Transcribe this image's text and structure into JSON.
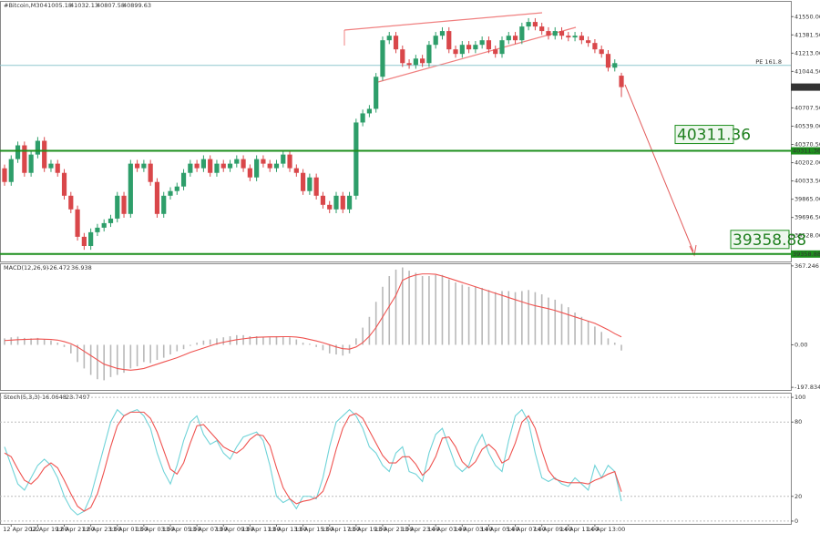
{
  "chart_data": [
    {
      "type": "candlestick",
      "title": "#Bitcoin,M30",
      "open": [
        40150,
        40024,
        40235,
        40362,
        40108,
        40277,
        40404,
        40151,
        40193,
        40108,
        39897,
        39771,
        39518,
        39433,
        39560,
        39602,
        39644,
        39686,
        39897,
        39729,
        40193,
        40151,
        40193,
        40024,
        39729,
        39897,
        39940,
        39982,
        40108,
        40193,
        40151,
        40235,
        40108,
        40193,
        40151,
        40193,
        40235,
        40151,
        40066,
        40235,
        40193,
        40151,
        40193,
        40277,
        40151,
        40108,
        39940,
        40066,
        39897,
        39813,
        39771,
        39897,
        39771,
        39897,
        40573,
        40657,
        40699,
        40995,
        41332,
        41374,
        41248,
        41121,
        41104,
        41163,
        41121,
        41290,
        41374,
        41417,
        41248,
        41206,
        41290,
        41248,
        41290,
        41332,
        41248,
        41206,
        41332,
        41374,
        41332,
        41459,
        41501,
        41459,
        41417,
        41374,
        41417,
        41374,
        41358,
        41374,
        41332,
        41307,
        41248,
        41206,
        41079,
        41005.18
      ],
      "high": [
        40185,
        40270,
        40397,
        40397,
        40312,
        40439,
        40439,
        40228,
        40228,
        40143,
        39932,
        39806,
        39553,
        39595,
        39637,
        39679,
        39721,
        39932,
        39932,
        40228,
        40228,
        40228,
        40228,
        40059,
        39932,
        39975,
        40017,
        40143,
        40228,
        40228,
        40270,
        40270,
        40228,
        40228,
        40228,
        40270,
        40270,
        40186,
        40270,
        40270,
        40228,
        40228,
        40312,
        40312,
        40186,
        40143,
        40101,
        40101,
        39932,
        39848,
        39932,
        39932,
        39932,
        40608,
        40692,
        40734,
        41030,
        41367,
        41409,
        41409,
        41283,
        41156,
        41198,
        41198,
        41325,
        41409,
        41452,
        41452,
        41283,
        41325,
        41325,
        41325,
        41367,
        41367,
        41283,
        41367,
        41409,
        41409,
        41494,
        41536,
        41536,
        41494,
        41452,
        41452,
        41452,
        41409,
        41409,
        41409,
        41367,
        41342,
        41283,
        41241,
        41156,
        41032.13
      ],
      "low": [
        39989,
        39989,
        40200,
        40073,
        40073,
        40242,
        40116,
        40116,
        40073,
        39862,
        39736,
        39483,
        39398,
        39398,
        39525,
        39567,
        39609,
        39651,
        39694,
        39694,
        40116,
        40116,
        39989,
        39694,
        39694,
        39862,
        39905,
        39947,
        40073,
        40116,
        40116,
        40073,
        40073,
        40116,
        40116,
        40158,
        40116,
        40031,
        40031,
        40158,
        40116,
        40116,
        40158,
        40116,
        40073,
        39905,
        39905,
        39862,
        39778,
        39736,
        39736,
        39736,
        39736,
        39862,
        40538,
        40622,
        40664,
        40960,
        41297,
        41213,
        41086,
        41069,
        41069,
        41086,
        41086,
        41255,
        41339,
        41213,
        41171,
        41171,
        41213,
        41213,
        41255,
        41213,
        41171,
        41171,
        41297,
        41297,
        41297,
        41424,
        41424,
        41382,
        41339,
        41339,
        41339,
        41323,
        41323,
        41297,
        41272,
        41213,
        41171,
        41044,
        41044,
        40807.58
      ],
      "close": [
        40024,
        40235,
        40362,
        40108,
        40277,
        40404,
        40151,
        40193,
        40108,
        39897,
        39771,
        39518,
        39433,
        39560,
        39602,
        39644,
        39686,
        39897,
        39729,
        40193,
        40151,
        40193,
        40024,
        39729,
        39897,
        39940,
        39982,
        40108,
        40193,
        40151,
        40235,
        40108,
        40193,
        40151,
        40193,
        40235,
        40151,
        40066,
        40235,
        40193,
        40151,
        40193,
        40277,
        40151,
        40108,
        39940,
        40066,
        39897,
        39813,
        39771,
        39897,
        39771,
        39897,
        40573,
        40657,
        40699,
        40995,
        41332,
        41374,
        41248,
        41121,
        41104,
        41163,
        41121,
        41290,
        41374,
        41417,
        41248,
        41206,
        41290,
        41248,
        41290,
        41332,
        41248,
        41206,
        41332,
        41374,
        41332,
        41459,
        41501,
        41459,
        41417,
        41374,
        41417,
        41374,
        41358,
        41374,
        41332,
        41307,
        41248,
        41206,
        41079,
        41121,
        40899.63
      ],
      "bull_color": "#2e9e6a",
      "bear_color": "#d9474a",
      "ylim": [
        39290,
        41670
      ],
      "yticks": [
        {
          "value": 41550,
          "label": "41550.00"
        },
        {
          "value": 41381.5,
          "label": "41381.50"
        },
        {
          "value": 41213,
          "label": "41213.00"
        },
        {
          "value": 41044.5,
          "label": "41044.50"
        },
        {
          "value": 40707.5,
          "label": "40707.50"
        },
        {
          "value": 40539,
          "label": "40539.00"
        },
        {
          "value": 40370.5,
          "label": "40370.50"
        },
        {
          "value": 40202,
          "label": "40202.00"
        },
        {
          "value": 40033.5,
          "label": "40033.50"
        },
        {
          "value": 39865,
          "label": "39865.00"
        },
        {
          "value": 39696.5,
          "label": "39696.50"
        },
        {
          "value": 39528,
          "label": "39528.00"
        }
      ],
      "levels": [
        40311.36,
        39358.88
      ],
      "level_color": "#1e8f1e",
      "fib_level": {
        "value": 41100,
        "label": "PE 161.8"
      },
      "fib_color": "#8fc7cf"
    },
    {
      "type": "macd",
      "title": "MACD(12,26,9)",
      "histogram": [
        30,
        35,
        38,
        32,
        30,
        32,
        25,
        20,
        10,
        -10,
        -40,
        -80,
        -110,
        -140,
        -160,
        -165,
        -150,
        -140,
        -130,
        -110,
        -100,
        -80,
        -85,
        -70,
        -60,
        -45,
        -30,
        -20,
        -5,
        10,
        20,
        25,
        30,
        35,
        40,
        45,
        45,
        40,
        40,
        35,
        35,
        40,
        40,
        35,
        25,
        10,
        5,
        -10,
        -25,
        -40,
        -45,
        -50,
        -40,
        30,
        80,
        130,
        200,
        270,
        320,
        350,
        360,
        345,
        335,
        320,
        320,
        325,
        325,
        305,
        290,
        280,
        270,
        270,
        265,
        255,
        245,
        250,
        250,
        245,
        250,
        255,
        245,
        235,
        220,
        210,
        190,
        175,
        150,
        130,
        110,
        85,
        60,
        30,
        10,
        -26.472
      ],
      "signal": [
        20,
        22,
        24,
        25,
        26,
        27,
        26,
        25,
        22,
        15,
        5,
        -10,
        -30,
        -50,
        -70,
        -90,
        -100,
        -110,
        -115,
        -118,
        -115,
        -110,
        -100,
        -90,
        -80,
        -70,
        -60,
        -48,
        -35,
        -25,
        -15,
        -5,
        5,
        12,
        18,
        24,
        28,
        32,
        35,
        36,
        37,
        37,
        38,
        38,
        36,
        32,
        25,
        18,
        10,
        0,
        -10,
        -18,
        -20,
        -10,
        10,
        40,
        80,
        130,
        180,
        230,
        300,
        315,
        325,
        330,
        330,
        328,
        320,
        310,
        300,
        290,
        280,
        270,
        260,
        250,
        240,
        230,
        220,
        210,
        200,
        190,
        182,
        175,
        168,
        160,
        150,
        140,
        130,
        120,
        110,
        100,
        85,
        70,
        52,
        36.938
      ],
      "histogram_color": "#b8b8b8",
      "signal_color": "#ef5350",
      "ylim": [
        -210,
        375
      ],
      "yticks": [
        367.246,
        {
          "value": 0,
          "label": "0.00"
        },
        -197.834
      ]
    },
    {
      "type": "stochastic",
      "title": "Stoch(5,3,3)",
      "categories": [
        null,
        "12 Apr 2022",
        null,
        null,
        null,
        "12 Apr 19:00",
        null,
        null,
        null,
        "12 Apr 21:00",
        null,
        null,
        null,
        "12 Apr 23:00",
        null,
        null,
        null,
        "13 Apr 01:00",
        null,
        null,
        null,
        "13 Apr 03:00",
        null,
        null,
        null,
        "13 Apr 05:00",
        null,
        null,
        null,
        "13 Apr 07:00",
        null,
        null,
        null,
        "13 Apr 09:00",
        null,
        null,
        null,
        "13 Apr 11:00",
        null,
        null,
        null,
        "13 Apr 13:00",
        null,
        null,
        null,
        "13 Apr 15:00",
        null,
        null,
        null,
        "13 Apr 17:00",
        null,
        null,
        null,
        "13 Apr 19:00",
        null,
        null,
        null,
        "13 Apr 21:00",
        null,
        null,
        null,
        "13 Apr 23:00",
        null,
        null,
        null,
        "14 Apr 01:00",
        null,
        null,
        null,
        "14 Apr 03:00",
        null,
        null,
        null,
        "14 Apr 05:00",
        null,
        null,
        null,
        "14 Apr 07:00",
        null,
        null,
        null,
        "14 Apr 09:00",
        null,
        null,
        null,
        "14 Apr 11:00",
        null,
        null,
        null,
        "14 Apr 13:00",
        null,
        null,
        null,
        null
      ],
      "main": [
        60,
        45,
        30,
        25,
        35,
        45,
        50,
        45,
        35,
        20,
        10,
        5,
        8,
        20,
        40,
        60,
        80,
        90,
        85,
        88,
        90,
        85,
        75,
        55,
        40,
        30,
        45,
        65,
        80,
        85,
        70,
        62,
        65,
        55,
        50,
        60,
        68,
        70,
        72,
        65,
        45,
        20,
        15,
        18,
        10,
        20,
        20,
        18,
        35,
        60,
        80,
        85,
        90,
        85,
        75,
        60,
        55,
        45,
        40,
        55,
        60,
        40,
        38,
        32,
        55,
        70,
        75,
        60,
        45,
        40,
        45,
        60,
        70,
        55,
        45,
        40,
        65,
        85,
        90,
        80,
        55,
        35,
        32,
        35,
        30,
        28,
        35,
        30,
        25,
        45,
        35,
        45,
        40,
        16.0648
      ],
      "signal": [
        55,
        52,
        42,
        33,
        30,
        35,
        43,
        47,
        43,
        33,
        22,
        12,
        8,
        11,
        22,
        40,
        60,
        77,
        85,
        88,
        88,
        88,
        83,
        72,
        57,
        42,
        38,
        47,
        63,
        77,
        78,
        72,
        66,
        60,
        57,
        55,
        59,
        66,
        70,
        69,
        61,
        43,
        27,
        18,
        14,
        16,
        17,
        19,
        24,
        38,
        58,
        75,
        85,
        87,
        83,
        73,
        63,
        53,
        47,
        47,
        52,
        52,
        46,
        37,
        42,
        52,
        67,
        68,
        60,
        48,
        43,
        48,
        58,
        62,
        57,
        47,
        50,
        63,
        80,
        85,
        75,
        57,
        41,
        34,
        32,
        31,
        31,
        31,
        30,
        33,
        35,
        38,
        40,
        23.7497
      ],
      "main_color": "#6fd3d8",
      "signal_color": "#ef5350",
      "ylim": [
        -3,
        103
      ],
      "yticks": [
        100,
        80,
        20,
        0
      ],
      "grid": true
    }
  ]
}
